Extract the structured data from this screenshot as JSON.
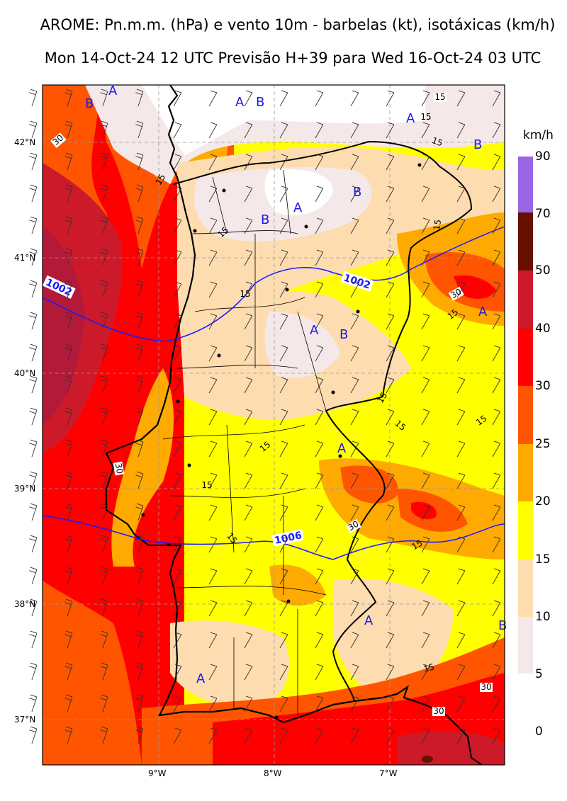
{
  "title": {
    "line1": "AROME: Pn.m.m. (hPa) e vento 10m - barbelas (kt), isotáxicas (km/h)",
    "line2": "Mon 14-Oct-24 12 UTC Previsão H+39 para Wed 16-Oct-24 03 UTC"
  },
  "axes": {
    "lat_labels": [
      "42°N",
      "41°N",
      "40°N",
      "39°N",
      "38°N",
      "37°N"
    ],
    "lon_labels": [
      "9°W",
      "8°W",
      "7°W"
    ]
  },
  "colorbar": {
    "unit": "km/h",
    "levels": [
      "90",
      "70",
      "50",
      "40",
      "30",
      "25",
      "20",
      "15",
      "10",
      "5",
      "0"
    ],
    "bands": [
      {
        "range": "70-90",
        "color": "#9966e6"
      },
      {
        "range": "50-70",
        "color": "#661100"
      },
      {
        "range": "40-50",
        "color": "#cc1a2a"
      },
      {
        "range": "30-40",
        "color": "#ff0000"
      },
      {
        "range": "25-30",
        "color": "#ff5500"
      },
      {
        "range": "20-25",
        "color": "#ffaa00"
      },
      {
        "range": "15-20",
        "color": "#ffff00"
      },
      {
        "range": "10-15",
        "color": "#fddcb0"
      },
      {
        "range": "5-10",
        "color": "#f5e8e8"
      }
    ]
  },
  "isobar_labels": [
    "1002",
    "1002",
    "1006"
  ],
  "isotach_labels": [
    "15",
    "30"
  ],
  "pressure_centers": [
    "A",
    "B"
  ]
}
